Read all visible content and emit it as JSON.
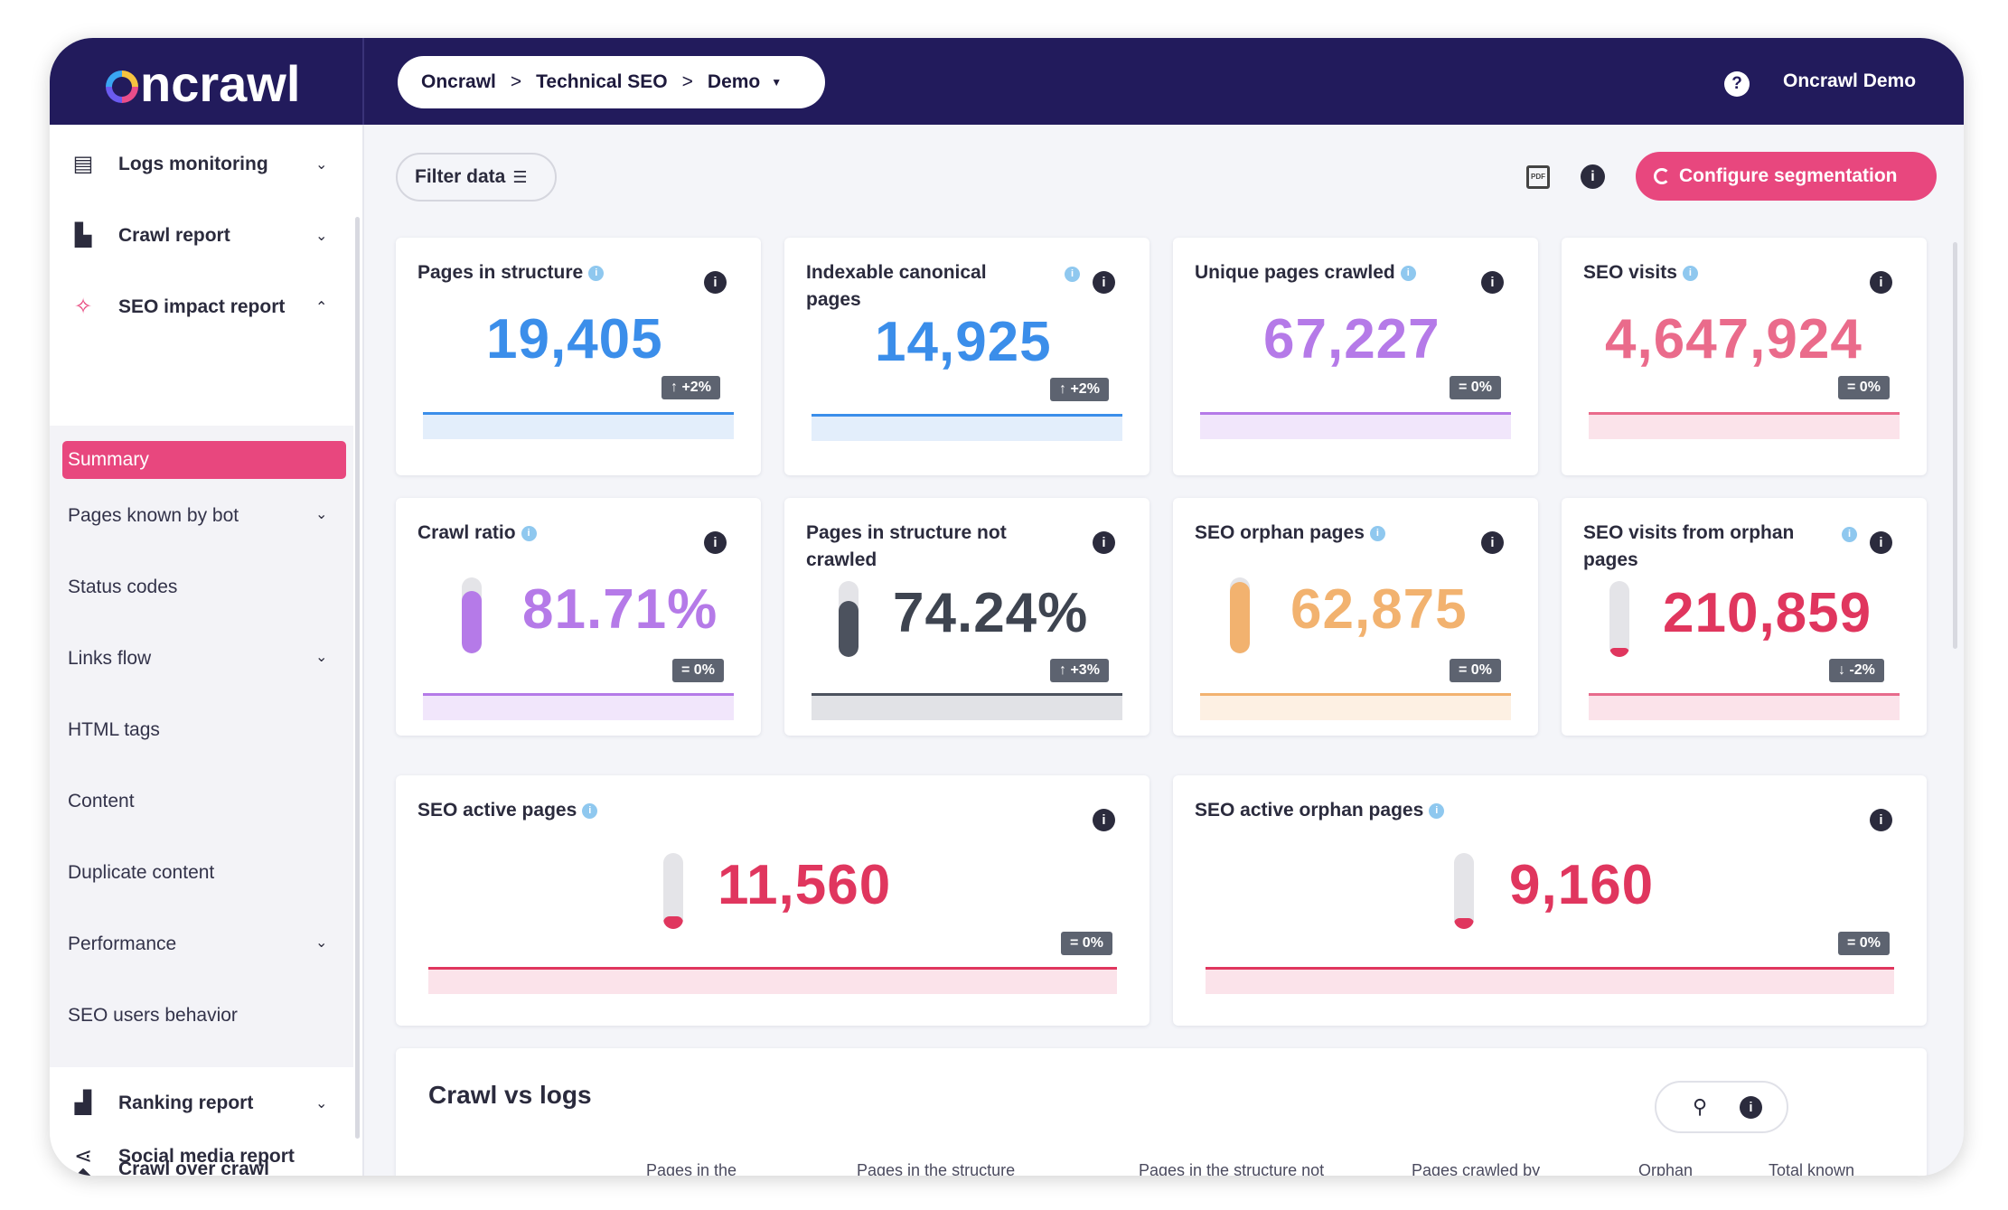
{
  "app": {
    "logo": "oncrawl"
  },
  "breadcrumb": {
    "items": [
      "Oncrawl",
      "Technical SEO",
      "Demo"
    ]
  },
  "header": {
    "help": "?",
    "user": "Oncrawl Demo"
  },
  "sidebar": {
    "items": [
      {
        "label": "Logs monitoring",
        "icon": "list-icon"
      },
      {
        "label": "Crawl report",
        "icon": "report-icon"
      },
      {
        "label": "SEO impact report",
        "icon": "impact-icon"
      }
    ],
    "subitems": [
      "Summary",
      "Pages known by bot",
      "Status codes",
      "Links flow",
      "HTML tags",
      "Content",
      "Duplicate content",
      "Performance",
      "SEO users behavior"
    ],
    "bottom": [
      {
        "label": "Ranking report",
        "icon": "ranking-icon"
      },
      {
        "label": "Social media report",
        "icon": "share-icon"
      },
      {
        "label": "Crawl over crawl",
        "icon": "layers-icon"
      }
    ]
  },
  "toolbar": {
    "filter_label": "Filter data",
    "config_label": "Configure segmentation",
    "pdf_label": "PDF"
  },
  "colors": {
    "navy": "#221b5c",
    "pink": "#e8477e",
    "blue": "#3b8eea",
    "purple": "#b57ae8",
    "dark": "#4c525e",
    "orange": "#f2b26f",
    "red": "#e0365e"
  },
  "cards": [
    {
      "title": "Pages in structure",
      "value": "19,405",
      "badge": "↑ +2%"
    },
    {
      "title": "Indexable canonical pages",
      "value": "14,925",
      "badge": "↑ +2%"
    },
    {
      "title": "Unique pages crawled",
      "value": "67,227",
      "badge": "= 0%"
    },
    {
      "title": "SEO visits",
      "value": "4,647,924",
      "badge": "= 0%"
    },
    {
      "title": "Crawl ratio",
      "value": "81.71%",
      "badge": "= 0%",
      "gauge": 0.82
    },
    {
      "title": "Pages in structure not crawled",
      "value": "74.24%",
      "badge": "↑ +3%",
      "gauge": 0.74
    },
    {
      "title": "SEO orphan pages",
      "value": "62,875",
      "badge": "= 0%",
      "gauge": 0.94
    },
    {
      "title": "SEO visits from orphan pages",
      "value": "210,859",
      "badge": "↓ -2%",
      "gauge": 0.05
    },
    {
      "title": "SEO active pages",
      "value": "11,560",
      "badge": "= 0%",
      "gauge": 0.17
    },
    {
      "title": "SEO active orphan pages",
      "value": "9,160",
      "badge": "= 0%",
      "gauge": 0.14
    }
  ],
  "crawl_vs_logs": {
    "title": "Crawl vs logs",
    "columns": [
      "Pages in the",
      "Pages in the structure",
      "Pages in the structure not",
      "Pages crawled by",
      "Orphan",
      "Total known"
    ]
  }
}
